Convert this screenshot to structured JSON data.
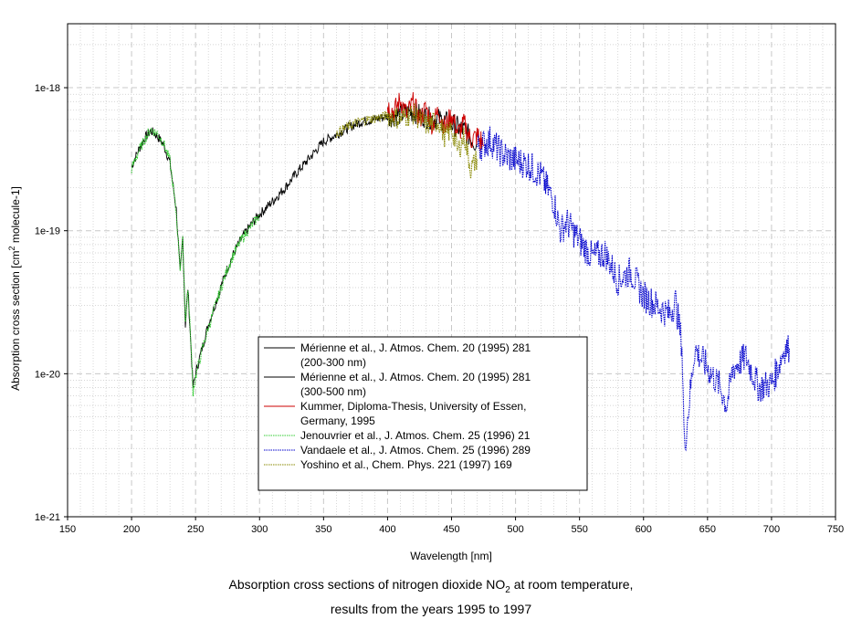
{
  "chart_data": {
    "type": "line",
    "xlabel": "Wavelength [nm]",
    "ylabel": "Absorption cross section [cm² molecule-1]",
    "ylabel_parts": [
      "Absorption cross section [cm",
      "2",
      "  molecule-1]"
    ],
    "xlim": [
      150,
      750
    ],
    "ylim": [
      1e-21,
      2.8e-18
    ],
    "yscale": "log",
    "x_ticks": [
      "150",
      "200",
      "250",
      "300",
      "350",
      "400",
      "450",
      "500",
      "550",
      "600",
      "650",
      "700",
      "750"
    ],
    "y_ticks": [
      "1e-21",
      "1e-20",
      "1e-19",
      "1e-18"
    ],
    "grid": true,
    "legend_position": "bottom-center",
    "caption": {
      "line1_pre": "Absorption cross sections of nitrogen dioxide NO",
      "line1_sub": "2",
      "line1_post": " at room temperature,",
      "line2": "results from the years 1995 to 1997"
    },
    "series": [
      {
        "name": "Mérienne et al., J. Atmos. Chem. 20 (1995) 281 (200-300 nm)",
        "legend_lines": [
          "Mérienne et al., J. Atmos. Chem. 20 (1995) 281",
          "(200-300 nm)"
        ],
        "color": "#000000",
        "style": "solid",
        "x": [
          200,
          205,
          210,
          215,
          220,
          225,
          230,
          235,
          238,
          240,
          242,
          244,
          246,
          248,
          250,
          255,
          260,
          265,
          270,
          275,
          280,
          285,
          290,
          295,
          300
        ],
        "y": [
          2.8e-19,
          3.6e-19,
          4.4e-19,
          5e-19,
          4.6e-19,
          4e-19,
          3e-19,
          1.4e-19,
          5e-20,
          9e-20,
          2.2e-20,
          4e-20,
          1.8e-20,
          8e-21,
          1e-20,
          1.5e-20,
          2.2e-20,
          3e-20,
          4.1e-20,
          5.5e-20,
          7e-20,
          8.5e-20,
          1e-19,
          1.15e-19,
          1.3e-19
        ]
      },
      {
        "name": "Mérienne et al., J. Atmos. Chem. 20 (1995) 281 (300-500 nm)",
        "legend_lines": [
          "Mérienne et al., J. Atmos. Chem. 20 (1995) 281",
          "(300-500 nm)"
        ],
        "color": "#000000",
        "style": "solid",
        "x": [
          300,
          310,
          320,
          330,
          340,
          350,
          360,
          370,
          380,
          390,
          400,
          410,
          420,
          430,
          440,
          450,
          460,
          470
        ],
        "y": [
          1.3e-19,
          1.6e-19,
          2e-19,
          2.6e-19,
          3.3e-19,
          4.2e-19,
          4.7e-19,
          5.3e-19,
          5.8e-19,
          6e-19,
          6.3e-19,
          6.5e-19,
          6.8e-19,
          6.2e-19,
          6e-19,
          5.6e-19,
          5e-19,
          4e-19
        ]
      },
      {
        "name": "Kummer, Diploma-Thesis, University of Essen, Germany, 1995",
        "legend_lines": [
          "Kummer, Diploma-Thesis, University of Essen,",
          "Germany, 1995"
        ],
        "color": "#cc0000",
        "style": "solid",
        "x": [
          400,
          405,
          410,
          415,
          420,
          425,
          430,
          435,
          440,
          445,
          450,
          455,
          460,
          465,
          470,
          475
        ],
        "y": [
          7.5e-19,
          6.8e-19,
          8.2e-19,
          6.5e-19,
          7.8e-19,
          6e-19,
          7.2e-19,
          5.5e-19,
          7e-19,
          5.2e-19,
          6.5e-19,
          4.8e-19,
          5.6e-19,
          4.3e-19,
          4.6e-19,
          3.9e-19
        ]
      },
      {
        "name": "Jenouvrier et al., J. Atmos. Chem. 25 (1996) 21",
        "legend_lines": [
          "Jenouvrier et al., J. Atmos. Chem. 25 (1996) 21"
        ],
        "color": "#33cc33",
        "style": "dotted",
        "x": [
          200,
          205,
          210,
          215,
          220,
          225,
          230,
          235,
          238,
          240,
          242,
          244,
          246,
          248,
          250,
          255,
          260,
          265,
          270,
          275,
          280,
          285,
          290,
          295,
          300
        ],
        "y": [
          2.7e-19,
          3.5e-19,
          4.3e-19,
          5.1e-19,
          4.8e-19,
          4.1e-19,
          3.1e-19,
          1.3e-19,
          5.5e-20,
          8.5e-20,
          2.4e-20,
          3.8e-20,
          1.9e-20,
          7.5e-21,
          9.5e-21,
          1.45e-20,
          2.1e-20,
          2.9e-20,
          4e-20,
          5.4e-20,
          6.9e-20,
          8.4e-20,
          9.8e-20,
          1.12e-19,
          1.28e-19
        ]
      },
      {
        "name": "Vandaele et al., J. Atmos. Chem. 25 (1996) 289",
        "legend_lines": [
          "Vandaele et al., J. Atmos. Chem. 25 (1996) 289"
        ],
        "color": "#0000cc",
        "style": "dotted",
        "x": [
          470,
          480,
          490,
          500,
          510,
          520,
          530,
          535,
          540,
          550,
          560,
          570,
          580,
          590,
          600,
          610,
          620,
          625,
          630,
          632,
          640,
          650,
          660,
          665,
          670,
          680,
          690,
          700,
          705,
          710,
          714
        ],
        "y": [
          3.8e-19,
          4.3e-19,
          3.4e-19,
          3.1e-19,
          2.9e-19,
          2.4e-19,
          1.6e-19,
          1e-19,
          1.15e-19,
          8.5e-20,
          6.5e-20,
          7e-20,
          4.5e-20,
          5.2e-20,
          3.5e-20,
          3e-20,
          2.6e-20,
          3.2e-20,
          1.6e-20,
          3e-21,
          1.5e-20,
          1.1e-20,
          8e-21,
          6e-21,
          1.1e-20,
          1.3e-20,
          8e-21,
          8.5e-21,
          1.1e-20,
          1.5e-20,
          1.5e-20
        ]
      },
      {
        "name": "Yoshino et al., Chem. Phys. 221 (1997) 169",
        "legend_lines": [
          "Yoshino et al., Chem. Phys. 221 (1997) 169"
        ],
        "color": "#888800",
        "style": "dotted",
        "x": [
          360,
          370,
          380,
          390,
          400,
          410,
          420,
          430,
          440,
          445,
          450,
          455,
          460,
          465,
          470
        ],
        "y": [
          4.8e-19,
          5.4e-19,
          5.9e-19,
          6.1e-19,
          6.4e-19,
          6.1e-19,
          6.6e-19,
          5.5e-19,
          5.8e-19,
          4.5e-19,
          5.2e-19,
          3.6e-19,
          4.6e-19,
          2.7e-19,
          3.2e-19
        ]
      }
    ]
  }
}
